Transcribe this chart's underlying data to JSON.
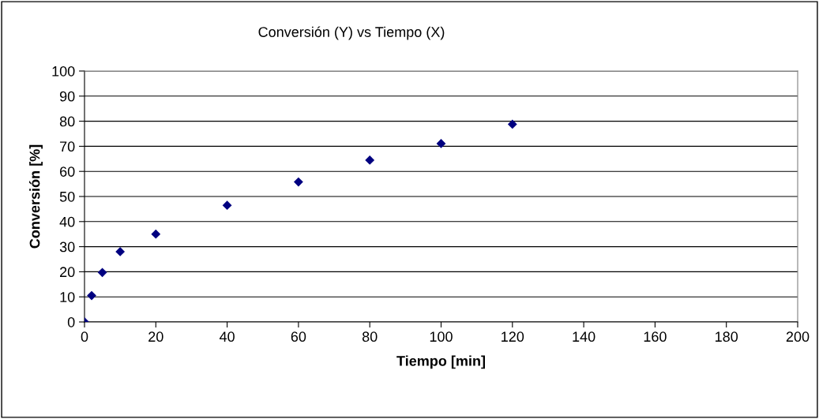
{
  "chart_data": {
    "type": "scatter",
    "title": "Conversión (Y) vs Tiempo (X)",
    "xlabel": "Tiempo [min]",
    "ylabel": "Conversión [%]",
    "x": [
      0,
      2,
      5,
      10,
      20,
      40,
      60,
      80,
      100,
      120
    ],
    "series": [
      {
        "color": "#000080",
        "values": [
          0,
          10.5,
          19.7,
          28.0,
          35.0,
          46.5,
          55.8,
          64.5,
          71.1,
          78.8
        ]
      }
    ],
    "xlim": [
      0,
      200
    ],
    "xticks": [
      0,
      20,
      40,
      60,
      80,
      100,
      120,
      140,
      160,
      180,
      200
    ],
    "ylim": [
      0,
      100
    ],
    "yticks": [
      0,
      10,
      20,
      30,
      40,
      50,
      60,
      70,
      80,
      90,
      100
    ],
    "grid": "y",
    "marker": "diamond",
    "legend": false
  }
}
